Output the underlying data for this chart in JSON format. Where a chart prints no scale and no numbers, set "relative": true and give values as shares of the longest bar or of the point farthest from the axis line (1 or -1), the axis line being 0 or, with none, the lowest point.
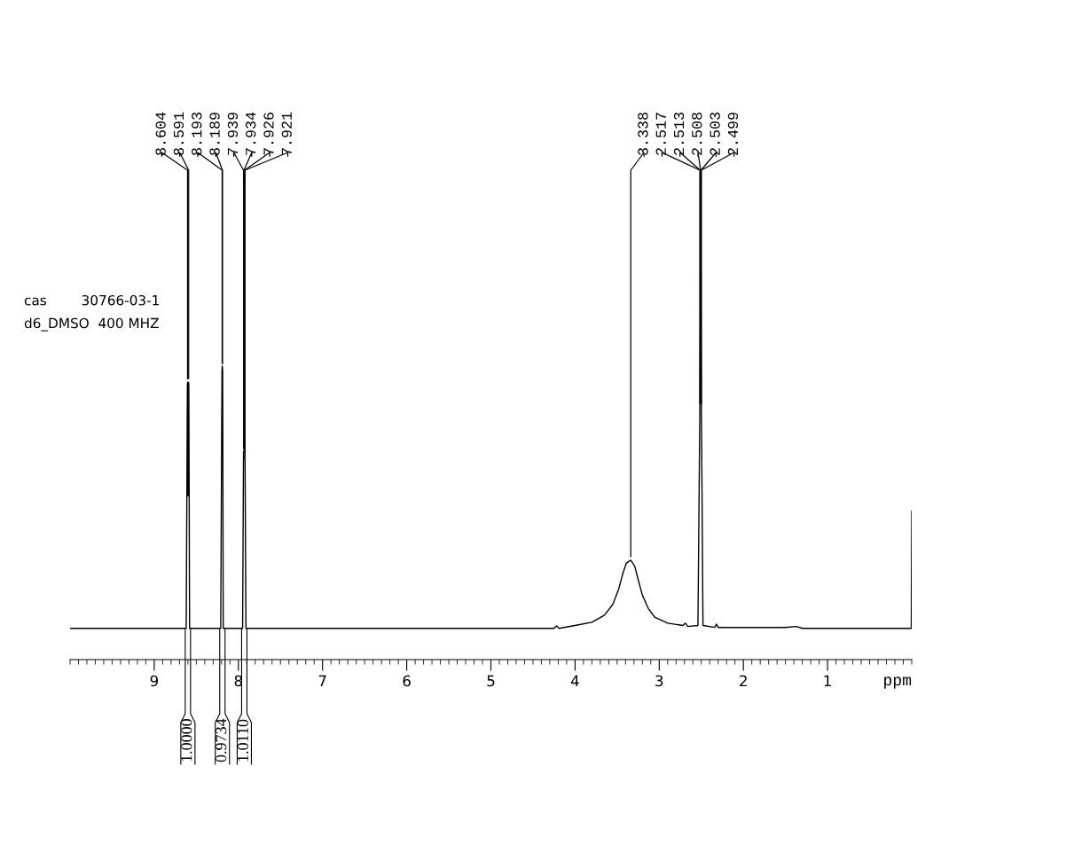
{
  "chart_data": {
    "type": "line",
    "relative": true,
    "xlabel": "ppm",
    "x": [
      10.0,
      9.0,
      8.62,
      8.606,
      8.604,
      8.598,
      8.591,
      8.589,
      8.58,
      8.21,
      8.195,
      8.193,
      8.189,
      8.187,
      8.18,
      7.95,
      7.939,
      7.934,
      7.926,
      7.921,
      7.91,
      4.25,
      4.22,
      4.19,
      4.0,
      3.8,
      3.65,
      3.55,
      3.48,
      3.43,
      3.39,
      3.338,
      3.29,
      3.25,
      3.2,
      3.13,
      3.05,
      2.9,
      2.72,
      2.69,
      2.66,
      2.54,
      2.517,
      2.508,
      2.499,
      2.48,
      2.34,
      2.32,
      2.3,
      1.5,
      1.37,
      1.3,
      0.005,
      0.0
    ],
    "series": [
      {
        "color": "#000000",
        "values": [
          0.066,
          0.066,
          0.066,
          0.58,
          0.586,
          0.346,
          0.586,
          0.58,
          0.066,
          0.066,
          0.608,
          0.62,
          0.617,
          0.608,
          0.066,
          0.066,
          0.439,
          0.43,
          0.43,
          0.421,
          0.066,
          0.066,
          0.071,
          0.066,
          0.072,
          0.079,
          0.094,
          0.117,
          0.15,
          0.183,
          0.204,
          0.21,
          0.197,
          0.169,
          0.136,
          0.108,
          0.089,
          0.077,
          0.072,
          0.077,
          0.07,
          0.072,
          0.533,
          1.0,
          0.533,
          0.072,
          0.068,
          0.075,
          0.068,
          0.068,
          0.07,
          0.066,
          0.066,
          0.314
        ]
      }
    ],
    "xlim": [
      10.0,
      0.0
    ],
    "xticks": [
      9,
      8,
      7,
      6,
      5,
      4,
      3,
      2,
      1
    ],
    "grid": false,
    "legend": false,
    "annotations": [
      "cas        30766-03-1",
      "d6_DMSO  400 MHZ",
      {
        "text": "8.604",
        "x": 8.604,
        "y": 0.586
      },
      {
        "text": "8.591",
        "x": 8.591,
        "y": 0.586
      },
      {
        "text": "8.193",
        "x": 8.193,
        "y": 0.62
      },
      {
        "text": "8.189",
        "x": 8.189,
        "y": 0.617
      },
      {
        "text": "7.939",
        "x": 7.939,
        "y": 0.439
      },
      {
        "text": "7.934",
        "x": 7.934,
        "y": 0.43
      },
      {
        "text": "7.926",
        "x": 7.926,
        "y": 0.43
      },
      {
        "text": "7.921",
        "x": 7.921,
        "y": 0.421
      },
      {
        "text": "3.338",
        "x": 3.338,
        "y": 0.21
      },
      {
        "text": "2.517",
        "x": 2.517,
        "y": 0.533
      },
      {
        "text": "2.513",
        "x": 2.513,
        "y": 0.767
      },
      {
        "text": "2.508",
        "x": 2.508,
        "y": 1.0
      },
      {
        "text": "2.503",
        "x": 2.503,
        "y": 0.767
      },
      {
        "text": "2.499",
        "x": 2.499,
        "y": 0.533
      },
      {
        "text": "1.0000",
        "x": 8.6,
        "y": 0.066
      },
      {
        "text": "0.9734",
        "x": 8.19,
        "y": 0.066
      },
      {
        "text": "1.0110",
        "x": 7.93,
        "y": 0.066
      }
    ]
  }
}
